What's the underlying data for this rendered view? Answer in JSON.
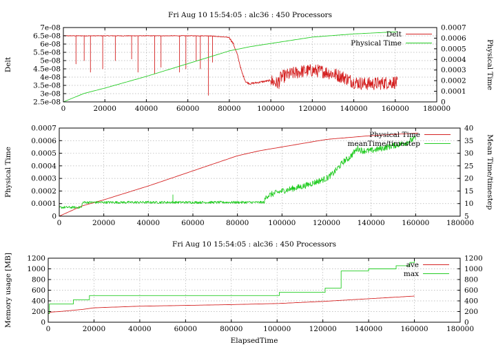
{
  "colors": {
    "red": "#d42020",
    "green": "#22cc22"
  },
  "chart_data": [
    {
      "type": "line",
      "title": "Fri Aug 10 15:54:05 : alc36 : 450 Processors",
      "xlabel": "",
      "ylabel": "Delt",
      "y2label": "Physical Time",
      "xlim": [
        0,
        180000
      ],
      "ylim": [
        2.5e-08,
        7e-08
      ],
      "y2lim": [
        0,
        0.0007
      ],
      "xticks": [
        "0",
        "20000",
        "40000",
        "60000",
        "80000",
        "100000",
        "120000",
        "140000",
        "160000",
        "180000"
      ],
      "yticks": [
        "2.5e-08",
        "3e-08",
        "3.5e-08",
        "4e-08",
        "4.5e-08",
        "5e-08",
        "5.5e-08",
        "6e-08",
        "6.5e-08",
        "7e-08"
      ],
      "y2ticks": [
        "0",
        "0.0001",
        "0.0002",
        "0.0003",
        "0.0004",
        "0.0005",
        "0.0006",
        "0.0007"
      ],
      "grid": true,
      "legend_position": "top-right",
      "series": [
        {
          "name": "Delt",
          "axis": "y",
          "color": "red",
          "style": "noisy",
          "x": [
            0,
            5000,
            10000,
            20000,
            30000,
            40000,
            50000,
            60000,
            70000,
            75000,
            80000,
            82000,
            84000,
            86000,
            88000,
            90000,
            95000,
            100000,
            103000,
            105000,
            110000,
            115000,
            120000,
            125000,
            130000,
            135000,
            140000,
            145000,
            150000,
            155000,
            160000,
            161000
          ],
          "y": [
            6.5e-08,
            6.5e-08,
            6.5e-08,
            6.5e-08,
            6.5e-08,
            6.5e-08,
            6.5e-08,
            6.5e-08,
            6.5e-08,
            6.45e-08,
            6.4e-08,
            6e-08,
            5.3e-08,
            4.3e-08,
            3.7e-08,
            3.6e-08,
            3.7e-08,
            3.8e-08,
            3.6e-08,
            4e-08,
            4.2e-08,
            4.35e-08,
            4.4e-08,
            4.35e-08,
            4.2e-08,
            4e-08,
            3.7e-08,
            3.6e-08,
            3.6e-08,
            3.65e-08,
            3.7e-08,
            3.6e-08
          ],
          "dips": [
            [
              6000,
              4.8e-08
            ],
            [
              10000,
              5e-08
            ],
            [
              13000,
              4.3e-08
            ],
            [
              19000,
              4.5e-08
            ],
            [
              25000,
              5e-08
            ],
            [
              33000,
              5.1e-08
            ],
            [
              36000,
              4.3e-08
            ],
            [
              44000,
              4.2e-08
            ],
            [
              47000,
              4.6e-08
            ],
            [
              56000,
              4.3e-08
            ],
            [
              59000,
              4.5e-08
            ],
            [
              64000,
              5e-08
            ],
            [
              66000,
              4.5e-08
            ],
            [
              70000,
              2.9e-08
            ],
            [
              72000,
              4.9e-08
            ],
            [
              104000,
              3.3e-08
            ]
          ],
          "noise_amplitude": 4e-09
        },
        {
          "name": "Physical Time",
          "axis": "y2",
          "color": "green",
          "style": "smooth",
          "x": [
            0,
            10000,
            20000,
            40000,
            60000,
            80000,
            90000,
            100000,
            120000,
            140000,
            161000
          ],
          "y": [
            0.0,
            8e-05,
            0.00013,
            0.00024,
            0.00036,
            0.00048,
            0.00052,
            0.00055,
            0.00061,
            0.00064,
            0.00066
          ]
        }
      ]
    },
    {
      "type": "line",
      "title": "",
      "xlabel": "",
      "ylabel": "Physical Time",
      "y2label": "Mean Time/timestep",
      "xlim": [
        0,
        180000
      ],
      "ylim": [
        0,
        0.0007
      ],
      "y2lim": [
        5,
        40
      ],
      "xticks": [
        "0",
        "20000",
        "40000",
        "60000",
        "80000",
        "100000",
        "120000",
        "140000",
        "160000",
        "180000"
      ],
      "yticks": [
        "0",
        "0.0001",
        "0.0002",
        "0.0003",
        "0.0004",
        "0.0005",
        "0.0006",
        "0.0007"
      ],
      "y2ticks": [
        "5",
        "10",
        "15",
        "20",
        "25",
        "30",
        "35",
        "40"
      ],
      "grid": true,
      "legend_position": "top-right",
      "series": [
        {
          "name": "Physical Time",
          "axis": "y",
          "color": "red",
          "style": "smooth",
          "x": [
            0,
            10000,
            20000,
            40000,
            60000,
            80000,
            90000,
            100000,
            120000,
            140000,
            161000
          ],
          "y": [
            0.0,
            8e-05,
            0.00013,
            0.00024,
            0.00036,
            0.00048,
            0.00052,
            0.00055,
            0.00061,
            0.00064,
            0.00066
          ]
        },
        {
          "name": "meanTime/timestep",
          "axis": "y2",
          "color": "green",
          "style": "noisy",
          "x": [
            0,
            10000,
            10500,
            50000,
            51000,
            92000,
            93000,
            100000,
            105000,
            110000,
            115000,
            120000,
            123000,
            125000,
            128000,
            130000,
            132000,
            134000,
            136000,
            140000,
            145000,
            150000,
            155000,
            160000
          ],
          "y": [
            8.5,
            8.5,
            10.5,
            10.5,
            10.5,
            10.5,
            13,
            15,
            16,
            17,
            18.5,
            20,
            22,
            24,
            27,
            28,
            30,
            32,
            31,
            31,
            32,
            33,
            34,
            36
          ],
          "spikes": [
            [
              51000,
              13.5
            ]
          ],
          "noise_amplitude": 1.2
        }
      ]
    },
    {
      "type": "line",
      "title": "Fri Aug 10 15:54:05 : alc36 : 450 Processors",
      "xlabel": "ElapsedTime",
      "ylabel": "Memory usage [MB]",
      "y2label": "",
      "xlim": [
        0,
        180000
      ],
      "ylim": [
        0,
        1200
      ],
      "y2lim": [
        0,
        1200
      ],
      "xticks": [
        "0",
        "20000",
        "40000",
        "60000",
        "80000",
        "100000",
        "120000",
        "140000",
        "160000",
        "180000"
      ],
      "yticks": [
        "0",
        "200",
        "400",
        "600",
        "800",
        "1000",
        "1200"
      ],
      "y2ticks": [
        "0",
        "200",
        "400",
        "600",
        "800",
        "1000",
        "1200"
      ],
      "grid": true,
      "legend_position": "top-right",
      "series": [
        {
          "name": "ave",
          "axis": "y",
          "color": "red",
          "style": "smooth",
          "x": [
            0,
            1000,
            5000,
            15000,
            20000,
            40000,
            60000,
            80000,
            100000,
            120000,
            140000,
            150000,
            160000
          ],
          "y": [
            160,
            190,
            200,
            240,
            270,
            300,
            315,
            330,
            350,
            390,
            440,
            465,
            490
          ],
          "steps": true
        },
        {
          "name": "max",
          "axis": "y",
          "color": "green",
          "style": "step",
          "x": [
            0,
            500,
            10000,
            11000,
            17000,
            18000,
            100000,
            101000,
            120000,
            121000,
            127000,
            128000,
            140000,
            152000,
            158000,
            160000
          ],
          "y": [
            160,
            340,
            340,
            420,
            420,
            500,
            500,
            560,
            560,
            640,
            640,
            960,
            1000,
            1060,
            1120,
            1180
          ]
        }
      ]
    }
  ]
}
